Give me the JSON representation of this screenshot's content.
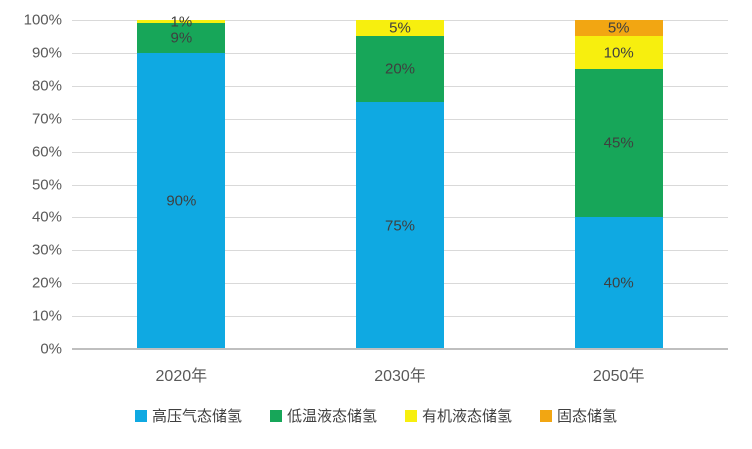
{
  "chart_data": {
    "type": "bar",
    "subtype": "stacked-100",
    "title": "",
    "xlabel": "",
    "ylabel": "",
    "categories": [
      "2020年",
      "2030年",
      "2050年"
    ],
    "series": [
      {
        "name": "高压气态储氢",
        "color": "#0fa9e2",
        "values": [
          90,
          75,
          40
        ]
      },
      {
        "name": "低温液态储氢",
        "color": "#17a659",
        "values": [
          9,
          20,
          45
        ]
      },
      {
        "name": "有机液态储氢",
        "color": "#f7ef0e",
        "values": [
          1,
          5,
          10
        ]
      },
      {
        "name": "固态储氢",
        "color": "#f2a612",
        "values": [
          0,
          0,
          5
        ]
      }
    ],
    "data_labels": [
      [
        "90%",
        "75%",
        "40%"
      ],
      [
        "9%",
        "20%",
        "45%"
      ],
      [
        "1%",
        "5%",
        "10%"
      ],
      [
        "",
        "",
        "5%"
      ]
    ],
    "y_axis": {
      "min": 0,
      "max": 100,
      "step": 10,
      "tick_labels": [
        "0%",
        "10%",
        "20%",
        "30%",
        "40%",
        "50%",
        "60%",
        "70%",
        "80%",
        "90%",
        "100%"
      ]
    },
    "legend_position": "bottom",
    "grid": true
  },
  "colors": {
    "gridline": "#d9d9d9",
    "axis_line": "#bfbfbf",
    "tick_text": "#595959",
    "data_label_text": "#3f3f3f",
    "legend_text": "#404040",
    "background": "#ffffff"
  }
}
